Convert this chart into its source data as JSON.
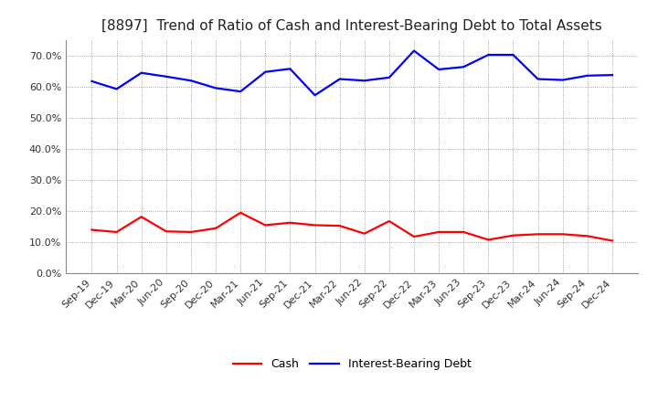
{
  "title": "[8897]  Trend of Ratio of Cash and Interest-Bearing Debt to Total Assets",
  "x_labels": [
    "Sep-19",
    "Dec-19",
    "Mar-20",
    "Jun-20",
    "Sep-20",
    "Dec-20",
    "Mar-21",
    "Jun-21",
    "Sep-21",
    "Dec-21",
    "Mar-22",
    "Jun-22",
    "Sep-22",
    "Dec-22",
    "Mar-23",
    "Jun-23",
    "Sep-23",
    "Dec-23",
    "Mar-24",
    "Jun-24",
    "Sep-24",
    "Dec-24"
  ],
  "cash": [
    0.14,
    0.133,
    0.182,
    0.135,
    0.133,
    0.145,
    0.195,
    0.155,
    0.163,
    0.155,
    0.153,
    0.128,
    0.168,
    0.118,
    0.133,
    0.133,
    0.108,
    0.122,
    0.126,
    0.126,
    0.12,
    0.105
  ],
  "interest_bearing_debt": [
    0.618,
    0.593,
    0.645,
    0.633,
    0.62,
    0.596,
    0.585,
    0.648,
    0.658,
    0.573,
    0.625,
    0.62,
    0.63,
    0.716,
    0.656,
    0.664,
    0.703,
    0.703,
    0.625,
    0.622,
    0.636,
    0.638
  ],
  "cash_color": "#ff0000",
  "debt_color": "#0000ff",
  "background_color": "#ffffff",
  "plot_bg_color": "#ffffff",
  "ylim": [
    0.0,
    0.75
  ],
  "yticks": [
    0.0,
    0.1,
    0.2,
    0.3,
    0.4,
    0.5,
    0.6,
    0.7
  ],
  "legend_cash": "Cash",
  "legend_debt": "Interest-Bearing Debt",
  "title_fontsize": 11,
  "axis_fontsize": 8,
  "legend_fontsize": 9,
  "line_width": 1.6
}
